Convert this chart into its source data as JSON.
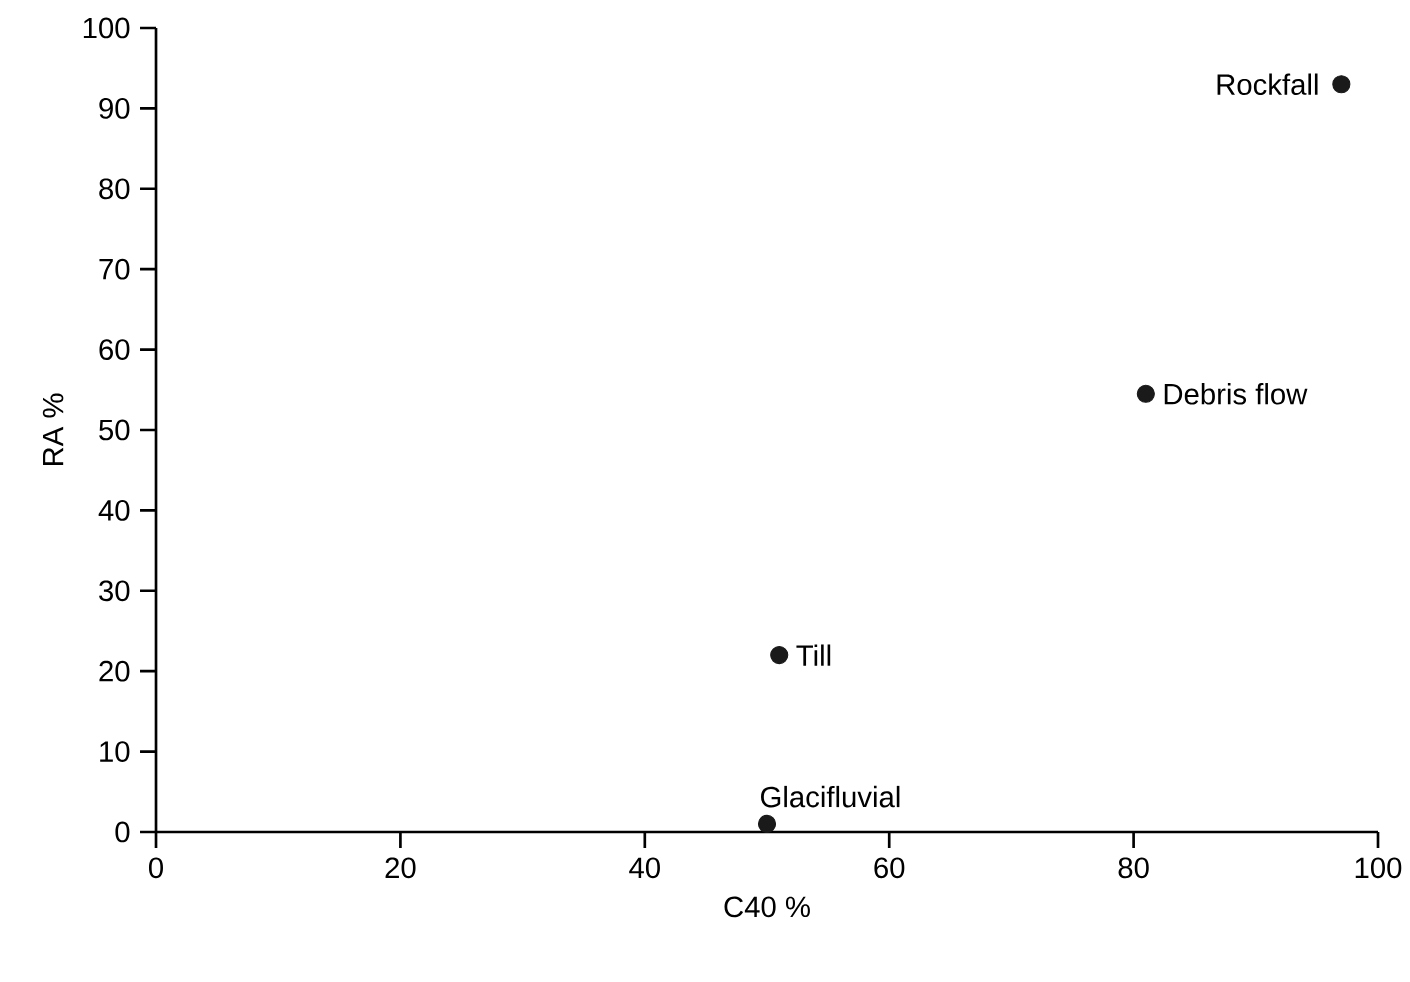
{
  "chart_data": {
    "type": "scatter",
    "xlabel": "C40 %",
    "ylabel": "RA %",
    "x": [
      50,
      51,
      81,
      97
    ],
    "values": [
      1,
      22,
      54.5,
      93
    ],
    "color": "#1a1a1a",
    "marker": "circle",
    "xlim": [
      0,
      100
    ],
    "ylim": [
      0,
      100
    ],
    "xticks": [
      0,
      20,
      40,
      60,
      80,
      100
    ],
    "yticks": [
      0,
      10,
      20,
      30,
      40,
      50,
      60,
      70,
      80,
      90,
      100
    ],
    "grid": false,
    "annotations": [
      {
        "text": "Glacifluvial",
        "x": 50,
        "y": 1
      },
      {
        "text": "Till",
        "x": 51,
        "y": 22
      },
      {
        "text": "Debris flow",
        "x": 81,
        "y": 54.5
      },
      {
        "text": "Rockfall",
        "x": 97,
        "y": 93
      }
    ]
  }
}
